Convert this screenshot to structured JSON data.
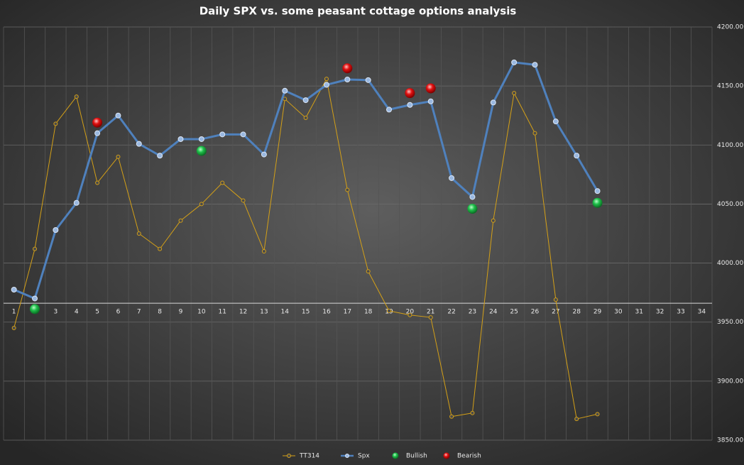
{
  "chart_data": {
    "type": "line",
    "title": "Daily SPX vs. some peasant cottage options analysis",
    "categories": [
      1,
      2,
      3,
      4,
      5,
      6,
      7,
      8,
      9,
      10,
      11,
      12,
      13,
      14,
      15,
      16,
      17,
      18,
      19,
      20,
      21,
      22,
      23,
      24,
      25,
      26,
      27,
      28,
      29,
      30,
      31,
      32,
      33,
      34
    ],
    "series": [
      {
        "name": "TT314",
        "color": "#d4a017",
        "style": "line",
        "values": [
          3945,
          4012,
          4118,
          4141,
          4068,
          4090,
          4025,
          4012,
          4036,
          4050,
          4068,
          4053,
          4010,
          4139,
          4123,
          4156,
          4062,
          3993,
          3959.5,
          3956,
          3954,
          3870,
          3873,
          4036,
          4144,
          4110,
          3969,
          3868,
          3872,
          null,
          null,
          null,
          null,
          null
        ]
      },
      {
        "name": "Spx",
        "color": "#4f81bd",
        "style": "line",
        "values": [
          3977.5,
          3970,
          4028,
          4051,
          4110,
          4125,
          4101,
          4091,
          4105,
          4105,
          4109,
          4109,
          4092,
          4146,
          4138,
          4151,
          4155.5,
          4155,
          4130,
          4134,
          4137,
          4072,
          4056,
          4136,
          4170,
          4168,
          4120,
          4091,
          4061,
          null,
          null,
          null,
          null,
          null
        ]
      },
      {
        "name": "Bullish",
        "color": "#1fbf4a",
        "style": "marker",
        "values": [
          null,
          3961,
          null,
          null,
          null,
          null,
          null,
          null,
          null,
          4095,
          null,
          null,
          null,
          null,
          null,
          null,
          null,
          null,
          null,
          null,
          null,
          null,
          4046,
          null,
          null,
          null,
          null,
          null,
          4051,
          null,
          null,
          null,
          null,
          null
        ]
      },
      {
        "name": "Bearish",
        "color": "#e01010",
        "style": "marker",
        "values": [
          null,
          null,
          null,
          null,
          4119,
          null,
          null,
          null,
          null,
          null,
          null,
          null,
          null,
          null,
          null,
          null,
          4165,
          null,
          null,
          4144,
          4148,
          null,
          null,
          null,
          null,
          null,
          null,
          null,
          null,
          null,
          null,
          null,
          null,
          null
        ]
      }
    ],
    "ylim": [
      3850,
      4200
    ],
    "yticks": [
      {
        "value": 3850,
        "label": "3850.00"
      },
      {
        "value": 3900,
        "label": "3900.00"
      },
      {
        "value": 3950,
        "label": "3950.00"
      },
      {
        "value": 4000,
        "label": "4000.00"
      },
      {
        "value": 4050,
        "label": "4050.00"
      },
      {
        "value": 4100,
        "label": "4100.00"
      },
      {
        "value": 4150,
        "label": "4150.00"
      },
      {
        "value": 4200,
        "label": "4200.00"
      }
    ],
    "xaxis_at": 3966,
    "grid": true,
    "legend": "bottom"
  }
}
